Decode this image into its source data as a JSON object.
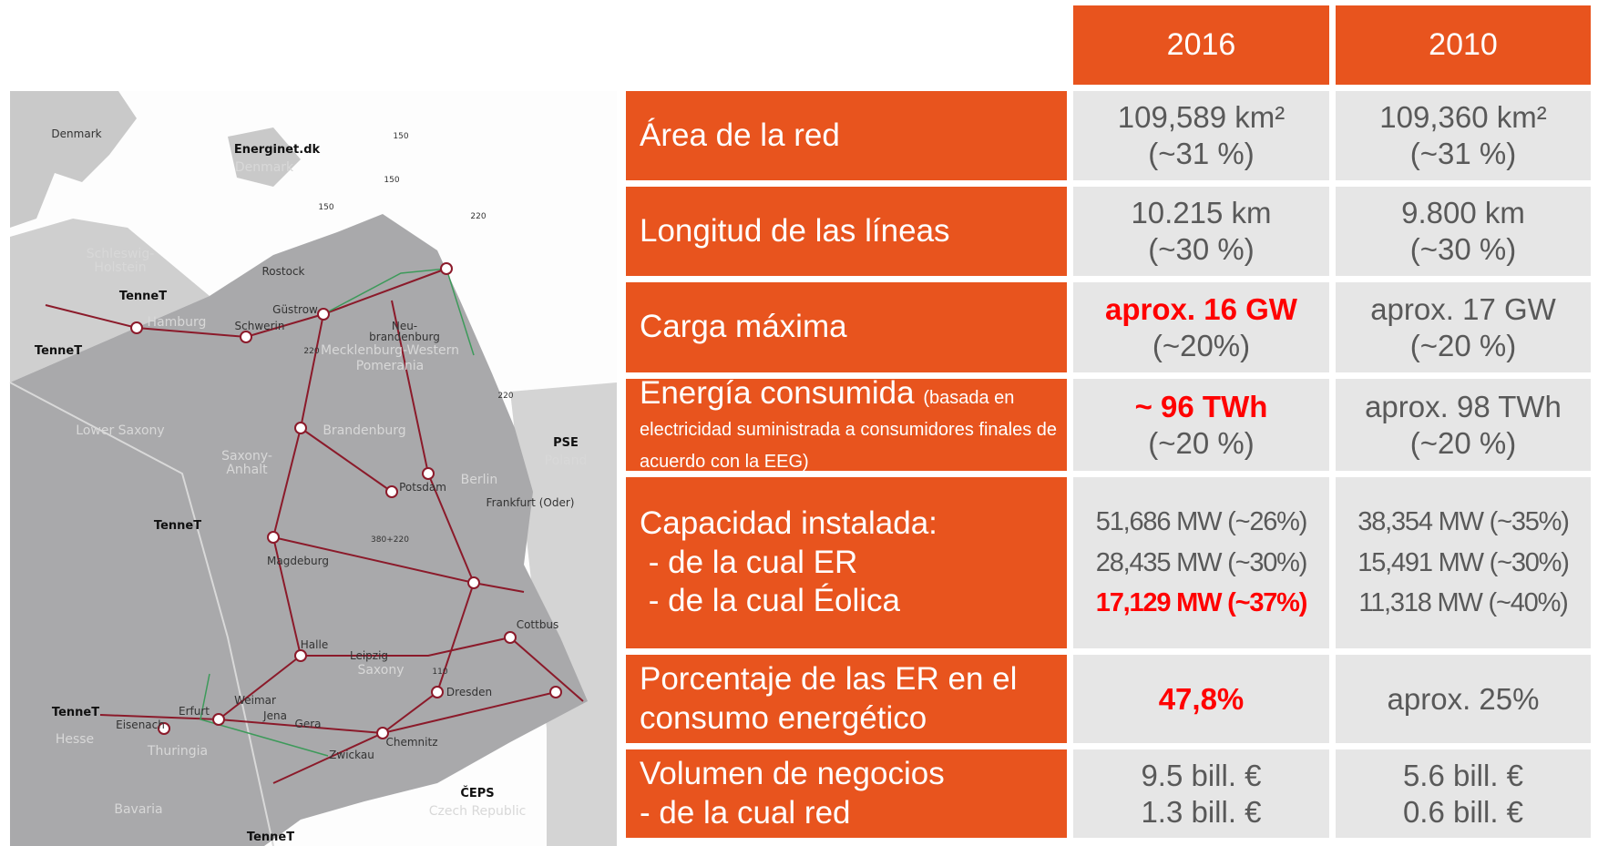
{
  "map": {
    "labels": [
      "Denmark",
      "Energinet.dk",
      "Denmark",
      "Schleswig-",
      "Holstein",
      "TenneT",
      "Hamburg",
      "TenneT",
      "Rostock",
      "Güstrow",
      "Schwerin",
      "Neu-",
      "brandenburg",
      "Mecklenburg-Western",
      "Pomerania",
      "Lower Saxony",
      "Brandenburg",
      "Saxony-",
      "Anhalt",
      "Berlin",
      "PSE",
      "Poland",
      "Frankfurt (Oder)",
      "Potsdam",
      "TenneT",
      "Magdeburg",
      "380+220",
      "Cottbus",
      "Halle",
      "Leipzig",
      "Saxony",
      "Dresden",
      "TenneT",
      "Hesse",
      "Erfurt",
      "Weimar",
      "Jena",
      "Gera",
      "Eisenach",
      "Thuringia",
      "Chemnitz",
      "Zwickau",
      "ČEPS",
      "Czech Republic",
      "Bavaria",
      "TenneT",
      "150",
      "150",
      "150",
      "220",
      "220",
      "220",
      "110"
    ]
  },
  "table": {
    "headers": [
      "2016",
      "2010"
    ],
    "rows": [
      {
        "label": [
          "Área de la red"
        ],
        "cells": [
          {
            "lines": [
              {
                "text": "109,589 km²"
              },
              {
                "text": "(~31 %)"
              }
            ]
          },
          {
            "lines": [
              {
                "text": "109,360 km²"
              },
              {
                "text": "(~31 %)"
              }
            ]
          }
        ]
      },
      {
        "label": [
          "Longitud de las líneas"
        ],
        "cells": [
          {
            "lines": [
              {
                "text": "10.215 km"
              },
              {
                "text": "(~30 %)"
              }
            ]
          },
          {
            "lines": [
              {
                "text": "9.800 km"
              },
              {
                "text": "(~30 %)"
              }
            ]
          }
        ]
      },
      {
        "label": [
          "Carga máxima"
        ],
        "cells": [
          {
            "lines": [
              {
                "text": "aprox. 16 GW",
                "highlight": true
              },
              {
                "text": "(~20%)"
              }
            ]
          },
          {
            "lines": [
              {
                "text": "aprox. 17 GW"
              },
              {
                "text": "(~20 %)"
              }
            ]
          }
        ]
      },
      {
        "label": [
          "Energía consumida"
        ],
        "note": "(basada en electricidad suministrada a consumidores finales de acuerdo con la EEG)",
        "cells": [
          {
            "lines": [
              {
                "text": "~ 96 TWh",
                "highlight": true
              },
              {
                "text": "(~20 %)"
              }
            ]
          },
          {
            "lines": [
              {
                "text": "aprox. 98 TWh"
              },
              {
                "text": "(~20 %)"
              }
            ]
          }
        ]
      },
      {
        "label": [
          "Capacidad instalada:",
          " - de la cual ER",
          " - de la cual Éolica"
        ],
        "compact": true,
        "cells": [
          {
            "lines": [
              {
                "text": "51,686 MW (~26%)"
              },
              {
                "text": "28,435 MW (~30%)"
              },
              {
                "text": "17,129 MW (~37%)",
                "highlight": true
              }
            ]
          },
          {
            "lines": [
              {
                "text": "38,354 MW (~35%)"
              },
              {
                "text": "15,491 MW (~30%)"
              },
              {
                "text": "11,318 MW (~40%)"
              }
            ]
          }
        ]
      },
      {
        "label": [
          "Porcentaje de las ER en el",
          "consumo energético"
        ],
        "cells": [
          {
            "lines": [
              {
                "text": "47,8%",
                "highlight": true
              }
            ]
          },
          {
            "lines": [
              {
                "text": "aprox. 25%"
              }
            ]
          }
        ]
      },
      {
        "label": [
          "Volumen de negocios",
          "- de la cual red"
        ],
        "cells": [
          {
            "lines": [
              {
                "text": "9.5 bill. €"
              },
              {
                "text": "1.3 bill. €"
              }
            ]
          },
          {
            "lines": [
              {
                "text": "5.6 bill. €"
              },
              {
                "text": "0.6 bill. €"
              }
            ]
          }
        ]
      }
    ]
  }
}
